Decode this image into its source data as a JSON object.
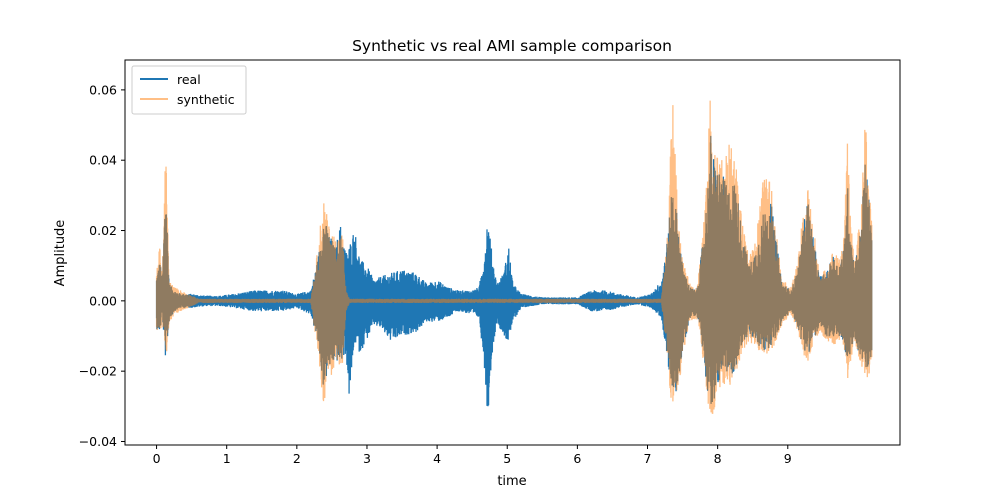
{
  "chart_data": {
    "type": "line",
    "title": "Synthetic vs real AMI sample comparison",
    "xlabel": "time",
    "ylabel": "Amplitude",
    "xlim": [
      -0.45,
      10.6
    ],
    "ylim": [
      -0.041,
      0.0685
    ],
    "xticks": [
      0,
      1,
      2,
      3,
      4,
      5,
      6,
      7,
      8,
      9
    ],
    "xtick_labels": [
      "0",
      "1",
      "2",
      "3",
      "4",
      "5",
      "6",
      "7",
      "8",
      "9"
    ],
    "yticks": [
      -0.04,
      -0.02,
      0.0,
      0.02,
      0.04,
      0.06
    ],
    "ytick_labels": [
      "−0.04",
      "−0.02",
      "0.00",
      "0.02",
      "0.04",
      "0.06"
    ],
    "grid": false,
    "legend_position": "upper-left",
    "series": [
      {
        "name": "real",
        "color": "#1f77b4",
        "opacity": 1.0,
        "envelope": [
          [
            0.0,
            0.007,
            -0.008
          ],
          [
            0.05,
            0.012,
            -0.009
          ],
          [
            0.08,
            0.005,
            -0.004
          ],
          [
            0.13,
            0.036,
            -0.017
          ],
          [
            0.18,
            0.005,
            -0.006
          ],
          [
            0.25,
            0.003,
            -0.003
          ],
          [
            0.35,
            0.002,
            -0.002
          ],
          [
            0.5,
            0.002,
            -0.002
          ],
          [
            0.7,
            0.0015,
            -0.0015
          ],
          [
            0.9,
            0.0015,
            -0.0015
          ],
          [
            1.1,
            0.002,
            -0.002
          ],
          [
            1.4,
            0.003,
            -0.003
          ],
          [
            1.6,
            0.003,
            -0.003
          ],
          [
            1.8,
            0.003,
            -0.003
          ],
          [
            2.0,
            0.002,
            -0.002
          ],
          [
            2.2,
            0.003,
            -0.004
          ],
          [
            2.3,
            0.012,
            -0.012
          ],
          [
            2.38,
            0.024,
            -0.025
          ],
          [
            2.45,
            0.02,
            -0.02
          ],
          [
            2.55,
            0.015,
            -0.017
          ],
          [
            2.62,
            0.022,
            -0.018
          ],
          [
            2.7,
            0.014,
            -0.015
          ],
          [
            2.75,
            0.016,
            -0.029
          ],
          [
            2.82,
            0.021,
            -0.012
          ],
          [
            2.9,
            0.012,
            -0.015
          ],
          [
            3.0,
            0.01,
            -0.011
          ],
          [
            3.1,
            0.006,
            -0.007
          ],
          [
            3.2,
            0.007,
            -0.008
          ],
          [
            3.35,
            0.008,
            -0.012
          ],
          [
            3.5,
            0.009,
            -0.01
          ],
          [
            3.7,
            0.008,
            -0.009
          ],
          [
            3.85,
            0.005,
            -0.006
          ],
          [
            4.0,
            0.006,
            -0.006
          ],
          [
            4.15,
            0.004,
            -0.005
          ],
          [
            4.3,
            0.003,
            -0.003
          ],
          [
            4.5,
            0.003,
            -0.004
          ],
          [
            4.6,
            0.004,
            -0.005
          ],
          [
            4.68,
            0.015,
            -0.02
          ],
          [
            4.72,
            0.025,
            -0.034
          ],
          [
            4.78,
            0.014,
            -0.016
          ],
          [
            4.85,
            0.005,
            -0.006
          ],
          [
            4.95,
            0.008,
            -0.01
          ],
          [
            5.02,
            0.016,
            -0.012
          ],
          [
            5.08,
            0.005,
            -0.006
          ],
          [
            5.2,
            0.002,
            -0.002
          ],
          [
            5.5,
            0.001,
            -0.001
          ],
          [
            5.8,
            0.001,
            -0.001
          ],
          [
            6.0,
            0.001,
            -0.001
          ],
          [
            6.2,
            0.003,
            -0.003
          ],
          [
            6.4,
            0.003,
            -0.003
          ],
          [
            6.6,
            0.002,
            -0.002
          ],
          [
            6.85,
            0.001,
            -0.001
          ],
          [
            7.05,
            0.002,
            -0.002
          ],
          [
            7.2,
            0.006,
            -0.005
          ],
          [
            7.3,
            0.02,
            -0.02
          ],
          [
            7.35,
            0.035,
            -0.025
          ],
          [
            7.42,
            0.025,
            -0.026
          ],
          [
            7.5,
            0.01,
            -0.015
          ],
          [
            7.6,
            0.004,
            -0.005
          ],
          [
            7.7,
            0.003,
            -0.004
          ],
          [
            7.75,
            0.01,
            -0.008
          ],
          [
            7.85,
            0.03,
            -0.025
          ],
          [
            7.9,
            0.048,
            -0.03
          ],
          [
            7.95,
            0.04,
            -0.03
          ],
          [
            8.05,
            0.037,
            -0.02
          ],
          [
            8.15,
            0.032,
            -0.022
          ],
          [
            8.25,
            0.035,
            -0.02
          ],
          [
            8.35,
            0.02,
            -0.012
          ],
          [
            8.45,
            0.01,
            -0.01
          ],
          [
            8.55,
            0.015,
            -0.012
          ],
          [
            8.65,
            0.025,
            -0.015
          ],
          [
            8.75,
            0.03,
            -0.013
          ],
          [
            8.85,
            0.015,
            -0.01
          ],
          [
            8.92,
            0.005,
            -0.006
          ],
          [
            9.05,
            0.003,
            -0.003
          ],
          [
            9.15,
            0.01,
            -0.008
          ],
          [
            9.2,
            0.018,
            -0.012
          ],
          [
            9.28,
            0.03,
            -0.016
          ],
          [
            9.35,
            0.02,
            -0.012
          ],
          [
            9.45,
            0.007,
            -0.008
          ],
          [
            9.55,
            0.008,
            -0.01
          ],
          [
            9.65,
            0.013,
            -0.012
          ],
          [
            9.72,
            0.01,
            -0.01
          ],
          [
            9.8,
            0.015,
            -0.012
          ],
          [
            9.85,
            0.034,
            -0.02
          ],
          [
            9.9,
            0.02,
            -0.015
          ],
          [
            9.95,
            0.01,
            -0.01
          ],
          [
            10.05,
            0.022,
            -0.018
          ],
          [
            10.1,
            0.042,
            -0.019
          ],
          [
            10.15,
            0.03,
            -0.02
          ],
          [
            10.2,
            0.025,
            -0.015
          ]
        ]
      },
      {
        "name": "synthetic",
        "color": "#ff7f0e",
        "opacity": 0.5,
        "envelope": [
          [
            0.0,
            0.009,
            -0.009
          ],
          [
            0.05,
            0.016,
            -0.01
          ],
          [
            0.08,
            0.006,
            -0.005
          ],
          [
            0.13,
            0.045,
            -0.018
          ],
          [
            0.18,
            0.006,
            -0.007
          ],
          [
            0.25,
            0.004,
            -0.004
          ],
          [
            0.35,
            0.003,
            -0.003
          ],
          [
            0.45,
            0.002,
            -0.002
          ],
          [
            0.6,
            0.0006,
            -0.0006
          ],
          [
            2.2,
            0.0006,
            -0.0006
          ],
          [
            2.28,
            0.012,
            -0.012
          ],
          [
            2.38,
            0.03,
            -0.03
          ],
          [
            2.45,
            0.022,
            -0.022
          ],
          [
            2.55,
            0.018,
            -0.02
          ],
          [
            2.65,
            0.02,
            -0.018
          ],
          [
            2.7,
            0.003,
            -0.003
          ],
          [
            2.75,
            0.0006,
            -0.0006
          ],
          [
            7.2,
            0.0006,
            -0.0006
          ],
          [
            7.3,
            0.022,
            -0.02
          ],
          [
            7.35,
            0.063,
            -0.033
          ],
          [
            7.42,
            0.03,
            -0.03
          ],
          [
            7.5,
            0.012,
            -0.016
          ],
          [
            7.6,
            0.005,
            -0.006
          ],
          [
            7.7,
            0.004,
            -0.005
          ],
          [
            7.75,
            0.012,
            -0.009
          ],
          [
            7.85,
            0.035,
            -0.028
          ],
          [
            7.9,
            0.064,
            -0.033
          ],
          [
            7.95,
            0.045,
            -0.032
          ],
          [
            8.05,
            0.04,
            -0.023
          ],
          [
            8.15,
            0.045,
            -0.025
          ],
          [
            8.25,
            0.042,
            -0.022
          ],
          [
            8.35,
            0.022,
            -0.014
          ],
          [
            8.45,
            0.012,
            -0.012
          ],
          [
            8.55,
            0.02,
            -0.013
          ],
          [
            8.65,
            0.035,
            -0.016
          ],
          [
            8.75,
            0.035,
            -0.015
          ],
          [
            8.85,
            0.018,
            -0.011
          ],
          [
            8.92,
            0.006,
            -0.007
          ],
          [
            9.05,
            0.004,
            -0.004
          ],
          [
            9.15,
            0.012,
            -0.009
          ],
          [
            9.2,
            0.022,
            -0.014
          ],
          [
            9.28,
            0.034,
            -0.018
          ],
          [
            9.35,
            0.024,
            -0.014
          ],
          [
            9.45,
            0.008,
            -0.009
          ],
          [
            9.55,
            0.009,
            -0.011
          ],
          [
            9.65,
            0.015,
            -0.013
          ],
          [
            9.72,
            0.012,
            -0.011
          ],
          [
            9.8,
            0.018,
            -0.013
          ],
          [
            9.85,
            0.045,
            -0.024
          ],
          [
            9.9,
            0.025,
            -0.017
          ],
          [
            9.95,
            0.012,
            -0.011
          ],
          [
            10.05,
            0.026,
            -0.02
          ],
          [
            10.1,
            0.056,
            -0.024
          ],
          [
            10.15,
            0.035,
            -0.022
          ],
          [
            10.2,
            0.028,
            -0.017
          ]
        ]
      }
    ]
  }
}
